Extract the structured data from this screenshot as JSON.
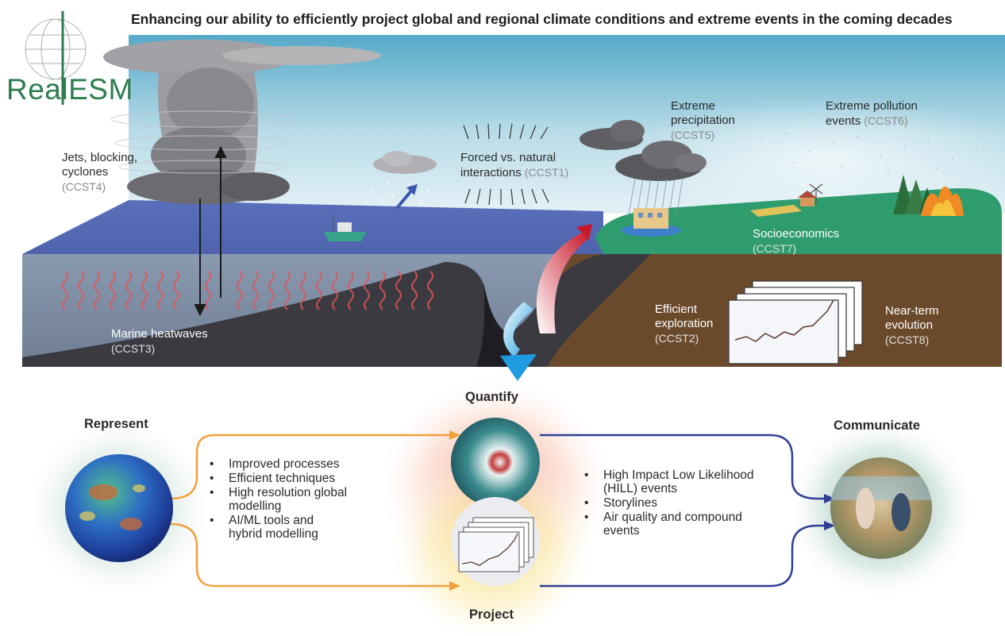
{
  "title": "Enhancing our ability to efficiently project global and regional climate conditions and extreme events in the coming decades",
  "logo": {
    "text": "RealESM"
  },
  "scene": {
    "jets": {
      "lines": [
        "Jets, blocking,",
        "cyclones"
      ],
      "code": "(CCST4)"
    },
    "forced": {
      "lines": [
        "Forced vs. natural",
        "interactions"
      ],
      "code": "(CCST1)"
    },
    "precip": {
      "lines": [
        "Extreme",
        "precipitation"
      ],
      "code": "(CCST5)"
    },
    "pollution": {
      "lines": [
        "Extreme pollution",
        "events"
      ],
      "code": "(CCST6)"
    },
    "socio": {
      "line": "Socioeconomics",
      "code": "(CCST7)"
    },
    "marine": {
      "line": "Marine heatwaves",
      "code": "(CCST3)"
    },
    "efficient": {
      "lines": [
        "Efficient",
        "exploration"
      ],
      "code": "(CCST2)"
    },
    "nearterm": {
      "lines": [
        "Near-term",
        "evolution"
      ],
      "code": "(CCST8)"
    }
  },
  "flow": {
    "represent": "Represent",
    "quantify": "Quantify",
    "project": "Project",
    "communicate": "Communicate",
    "left_bullets": [
      "Improved processes",
      "Efficient techniques",
      "High resolution global modelling",
      "AI/ML tools and hybrid modelling"
    ],
    "right_bullets": [
      "High Impact Low Likelihood (HILL) events",
      "Storylines",
      "Air quality and compound events"
    ]
  },
  "colors": {
    "ocean": "#5266b0",
    "land": "#2f9c6e",
    "soil": "#6b4a2c",
    "orange_arrow": "#f2a03d",
    "blue_arrow": "#2f3f94",
    "logo_green": "#2e7d4f"
  }
}
